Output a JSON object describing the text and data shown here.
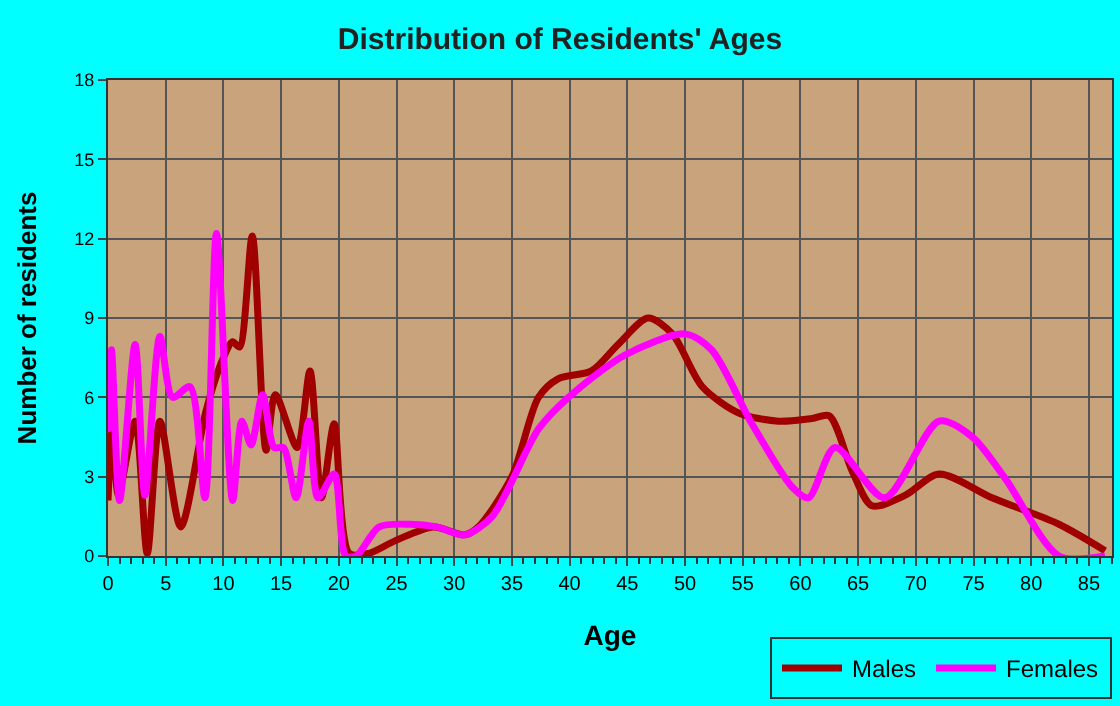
{
  "chart_data": {
    "type": "line",
    "title": "Distribution of Residents' Ages",
    "xlabel": "Age",
    "ylabel": "Number of residents",
    "xlim": [
      0,
      87
    ],
    "xticks": [
      0,
      5,
      10,
      15,
      20,
      25,
      30,
      35,
      40,
      45,
      50,
      55,
      60,
      65,
      70,
      75,
      80,
      85
    ],
    "ylim": [
      0,
      18
    ],
    "yticks": [
      0,
      3,
      6,
      9,
      12,
      15,
      18
    ],
    "grid": true,
    "legend": "bottom right",
    "marker": "none",
    "line_style": "solid",
    "series": [
      {
        "name": "Males",
        "color": "#a00000",
        "x": [
          0,
          0.4,
          0.9,
          2.35,
          3.4,
          4.5,
          6.3,
          8.5,
          10,
          10.8,
          11.4,
          12.5,
          13.7,
          14.5,
          16.4,
          17.5,
          18.5,
          19.6,
          20.9,
          22.6,
          25,
          28.2,
          30.9,
          32.1,
          35,
          37.3,
          39,
          41.9,
          44.2,
          46.8,
          48.9,
          51.5,
          54.7,
          58.1,
          61,
          62.5,
          64.5,
          66.2,
          69.1,
          72,
          76.6,
          82.4,
          86.4
        ],
        "values": [
          2.1,
          4.9,
          2.3,
          5.1,
          0.1,
          5.1,
          1.1,
          5.5,
          7.5,
          8.1,
          7.9,
          12.1,
          4,
          6.1,
          4.1,
          7,
          2.2,
          5,
          0.1,
          0.1,
          0.6,
          1.1,
          0.8,
          1.1,
          3,
          6,
          6.7,
          7,
          8,
          9,
          8.4,
          6.4,
          5.4,
          5.1,
          5.2,
          5.3,
          3.2,
          1.9,
          2.3,
          3.1,
          2.2,
          1.2,
          0.2
        ]
      },
      {
        "name": "Females",
        "color": "#ff00ff",
        "x": [
          0,
          0.3,
          1,
          2.35,
          3.2,
          4.5,
          5.6,
          7.1,
          8.4,
          9.4,
          10.8,
          11.6,
          12.4,
          13.4,
          14.4,
          15.2,
          16.3,
          17.4,
          18.2,
          19.6,
          20.6,
          21.5,
          23.5,
          26.2,
          28.5,
          30.9,
          33.3,
          37.3,
          39.9,
          44.8,
          50,
          52.3,
          55.8,
          59.3,
          60.7,
          63,
          67.3,
          72,
          74.9,
          77.8,
          82.4,
          86.4
        ],
        "values": [
          4.7,
          7.8,
          2.1,
          8,
          2.3,
          8.3,
          6,
          6.4,
          2.2,
          12.2,
          2.1,
          5.1,
          4.2,
          6.1,
          4.1,
          4.1,
          2.2,
          5.1,
          2.2,
          3.1,
          0,
          0,
          1.1,
          1.2,
          1.1,
          0.8,
          1.5,
          4.8,
          6,
          7.6,
          8.4,
          7.8,
          5,
          2.6,
          2.2,
          4.1,
          2.2,
          5.1,
          4.5,
          2.9,
          0,
          0
        ]
      }
    ]
  }
}
